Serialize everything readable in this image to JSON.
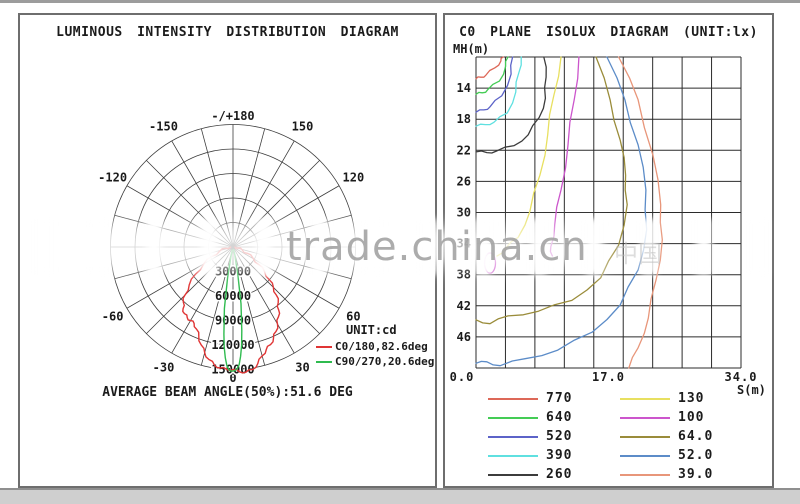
{
  "watermark": {
    "text": "trade.china.cn",
    "extra": "中国"
  },
  "left_panel": {
    "title": "LUMINOUS INTENSITY DISTRIBUTION DIAGRAM",
    "legend_unit": "UNIT:cd",
    "footer": "AVERAGE BEAM ANGLE(50%):51.6 DEG"
  },
  "right_panel": {
    "title": "C0 PLANE ISOLUX DIAGRAM (UNIT:lx)",
    "y_axis_label": "MH(m)",
    "x_axis_label": "S(m)"
  },
  "chart_data": [
    {
      "type": "line",
      "subtype": "polar-intensity-distribution",
      "title": "LUMINOUS INTENSITY DISTRIBUTION DIAGRAM",
      "unit": "cd",
      "radial_ticks": [
        30000,
        60000,
        90000,
        120000,
        150000
      ],
      "radial_max": 150000,
      "spoke_step_deg": 15,
      "angle_ticks": [
        {
          "angle": 180,
          "label": "-/+180"
        },
        {
          "angle": -150,
          "label": "-150"
        },
        {
          "angle": 150,
          "label": "150"
        },
        {
          "angle": -120,
          "label": "-120"
        },
        {
          "angle": 120,
          "label": "120"
        },
        {
          "angle": -60,
          "label": "-60"
        },
        {
          "angle": 60,
          "label": "60"
        },
        {
          "angle": -30,
          "label": "-30"
        },
        {
          "angle": 30,
          "label": "30"
        },
        {
          "angle": 0,
          "label": "0"
        }
      ],
      "average_beam_angle_50pct_deg": 51.6,
      "series": [
        {
          "name": "C0/180,82.6deg",
          "color": "#e03535",
          "points": [
            [
              -88,
              3000
            ],
            [
              -80,
              9000
            ],
            [
              -73,
              17000
            ],
            [
              -66,
              28000
            ],
            [
              -60,
              41000
            ],
            [
              -54,
              57000
            ],
            [
              -49,
              71000
            ],
            [
              -45,
              83000
            ],
            [
              -42,
              91000
            ],
            [
              -39,
              97000
            ],
            [
              -36,
              101000
            ],
            [
              -33,
              103000
            ],
            [
              -30,
              104000
            ],
            [
              -27,
              105000
            ],
            [
              -24,
              110000
            ],
            [
              -21,
              117000
            ],
            [
              -18,
              126000
            ],
            [
              -15,
              134000
            ],
            [
              -12,
              141000
            ],
            [
              -9,
              146000
            ],
            [
              -6,
              149000
            ],
            [
              -3,
              150000
            ],
            [
              0,
              150000
            ],
            [
              3,
              153000
            ],
            [
              6,
              154000
            ],
            [
              9,
              152000
            ],
            [
              12,
              146000
            ],
            [
              15,
              138000
            ],
            [
              18,
              132000
            ],
            [
              21,
              128000
            ],
            [
              24,
              122000
            ],
            [
              27,
              116000
            ],
            [
              30,
              109000
            ],
            [
              33,
              102000
            ],
            [
              36,
              95000
            ],
            [
              39,
              88000
            ],
            [
              42,
              79000
            ],
            [
              45,
              70000
            ],
            [
              48,
              60000
            ],
            [
              52,
              49000
            ],
            [
              56,
              38000
            ],
            [
              61,
              28000
            ],
            [
              66,
              19000
            ],
            [
              72,
              12000
            ],
            [
              79,
              6000
            ],
            [
              86,
              2500
            ]
          ]
        },
        {
          "name": "C90/270,20.6deg",
          "color": "#2fbb4f",
          "points": [
            [
              -14,
              4000
            ],
            [
              -12,
              13000
            ],
            [
              -10,
              38000
            ],
            [
              -8,
              76000
            ],
            [
              -6,
              107000
            ],
            [
              -5,
              123000
            ],
            [
              -4,
              136000
            ],
            [
              -3,
              145000
            ],
            [
              -2,
              150000
            ],
            [
              -1,
              152000
            ],
            [
              0,
              152000
            ],
            [
              1,
              151000
            ],
            [
              2,
              149000
            ],
            [
              3,
              144000
            ],
            [
              4,
              134000
            ],
            [
              5,
              121000
            ],
            [
              6,
              103000
            ],
            [
              8,
              70000
            ],
            [
              10,
              34000
            ],
            [
              12,
              11000
            ],
            [
              14,
              3500
            ]
          ]
        }
      ]
    },
    {
      "type": "contour",
      "subtype": "isolux",
      "title": "C0 PLANE ISOLUX DIAGRAM (UNIT:lx)",
      "unit": "lx",
      "x_label": "S(m)",
      "y_label": "MH(m)",
      "x_range": [
        0,
        34
      ],
      "y_range": [
        10,
        50
      ],
      "grid_cols": 9,
      "grid_rows": 10,
      "x_ticks": [
        {
          "v": 0,
          "label": "0.0"
        },
        {
          "v": 17,
          "label": "17.0"
        },
        {
          "v": 34,
          "label": "34.0"
        }
      ],
      "y_ticks": [
        14,
        18,
        22,
        26,
        30,
        34,
        38,
        42,
        46
      ],
      "series": [
        {
          "level": "770",
          "color": "#dd6858",
          "points": [
            [
              0,
              12.8
            ],
            [
              0.6,
              12.6
            ],
            [
              1.3,
              12.3
            ],
            [
              2.4,
              11.4
            ],
            [
              3.2,
              10.5
            ],
            [
              3.5,
              10
            ]
          ]
        },
        {
          "level": "640",
          "color": "#44cc55",
          "points": [
            [
              0,
              14.8
            ],
            [
              0.8,
              14.6
            ],
            [
              1.5,
              14.2
            ],
            [
              3.0,
              13.1
            ],
            [
              3.8,
              11.2
            ],
            [
              4.1,
              10
            ]
          ]
        },
        {
          "level": "520",
          "color": "#5c63c8",
          "points": [
            [
              0,
              17.1
            ],
            [
              1.0,
              16.8
            ],
            [
              1.8,
              16.4
            ],
            [
              3.3,
              15.0
            ],
            [
              4.5,
              12.2
            ],
            [
              4.7,
              10
            ]
          ]
        },
        {
          "level": "390",
          "color": "#5fe0e0",
          "points": [
            [
              0,
              18.9
            ],
            [
              1.2,
              18.7
            ],
            [
              2.3,
              18.4
            ],
            [
              4.0,
              17.2
            ],
            [
              5.1,
              14.5
            ],
            [
              5.5,
              12.0
            ],
            [
              5.8,
              10
            ]
          ]
        },
        {
          "level": "260",
          "color": "#3c3c3c",
          "points": [
            [
              0,
              22.2
            ],
            [
              1.4,
              22.3
            ],
            [
              2.6,
              22.1
            ],
            [
              4.9,
              21.4
            ],
            [
              6.7,
              20.0
            ],
            [
              8.1,
              17.8
            ],
            [
              8.9,
              15.3
            ],
            [
              9.0,
              12.6
            ],
            [
              8.7,
              10
            ]
          ]
        },
        {
          "level": "130",
          "color": "#e8e060",
          "points": [
            [
              10.9,
              10
            ],
            [
              10.0,
              14.9
            ],
            [
              9.2,
              20.0
            ],
            [
              8.2,
              25.2
            ],
            [
              6.9,
              29.9
            ],
            [
              5.4,
              33.2
            ],
            [
              3.8,
              34.6
            ],
            [
              2.7,
              35.6
            ]
          ]
        },
        {
          "level": "100",
          "color": "#cc55cc",
          "points": [
            [
              13.2,
              10
            ],
            [
              12.6,
              15.5
            ],
            [
              11.8,
              21.3
            ],
            [
              10.9,
              27.1
            ],
            [
              10.1,
              31.6
            ],
            [
              9.6,
              34.4
            ],
            [
              9.8,
              35.6
            ]
          ]
        },
        {
          "level": "64.0",
          "color": "#9a8c3a",
          "points": [
            [
              15.4,
              10
            ],
            [
              17.2,
              15.5
            ],
            [
              18.5,
              20.7
            ],
            [
              19.2,
              25.2
            ],
            [
              19.4,
              29.0
            ],
            [
              18.3,
              34.2
            ],
            [
              16.0,
              38.4
            ],
            [
              12.3,
              41.3
            ],
            [
              8.0,
              42.7
            ],
            [
              4.1,
              43.3
            ],
            [
              1.8,
              44.3
            ],
            [
              0,
              43.8
            ]
          ]
        },
        {
          "level": "52.0",
          "color": "#5c8cc8",
          "points": [
            [
              16.8,
              10
            ],
            [
              19.1,
              15.5
            ],
            [
              20.8,
              21.3
            ],
            [
              21.8,
              27.1
            ],
            [
              21.9,
              32.2
            ],
            [
              20.8,
              37.4
            ],
            [
              18.5,
              41.9
            ],
            [
              14.9,
              45.4
            ],
            [
              10.5,
              47.7
            ],
            [
              6.3,
              48.8
            ],
            [
              3.1,
              49.7
            ],
            [
              1.4,
              49.2
            ],
            [
              0,
              49.4
            ]
          ]
        },
        {
          "level": "39.0",
          "color": "#e8967a",
          "points": [
            [
              18.3,
              10
            ],
            [
              20.8,
              15.5
            ],
            [
              22.7,
              22.6
            ],
            [
              23.7,
              29.0
            ],
            [
              23.9,
              33.5
            ],
            [
              23.1,
              38.7
            ],
            [
              22.1,
              43.6
            ],
            [
              20.8,
              47.4
            ],
            [
              19.6,
              50
            ]
          ]
        }
      ],
      "extra_blob": {
        "level": "100",
        "color": "#cc55cc",
        "cx": 1.8,
        "cy": 36.5,
        "rx": 0.7,
        "ry": 1.3
      }
    }
  ]
}
